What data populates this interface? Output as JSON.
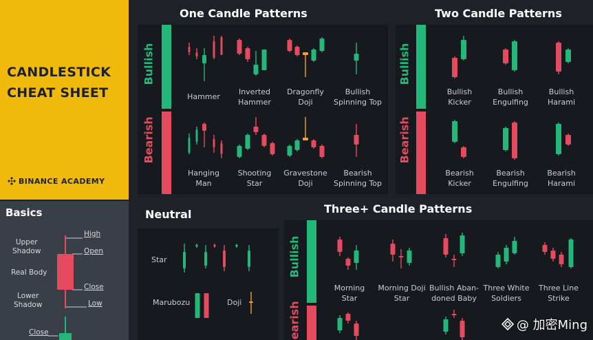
{
  "cheat_sheet": {
    "title_line1": "CANDLESTICK",
    "title_line2": "CHEAT SHEET",
    "brand": "BINANCE ACADEMY"
  },
  "basics": {
    "title": "Basics",
    "high": "High",
    "open": "Open",
    "close": "Close",
    "low": "Low",
    "upper_shadow_1": "Upper",
    "upper_shadow_2": "Shadow",
    "real_body": "Real Body",
    "lower_shadow_1": "Lower",
    "lower_shadow_2": "Shadow",
    "close_bottom": "Close"
  },
  "one_candle": {
    "title": "One Candle Patterns",
    "bullish_label": "Bullish",
    "bearish_label": "Bearish",
    "bullish": [
      {
        "l1": "Hammer",
        "l2": ""
      },
      {
        "l1": "Inverted",
        "l2": "Hammer"
      },
      {
        "l1": "Dragonfly",
        "l2": "Doji"
      },
      {
        "l1": "Bullish",
        "l2": "Spinning Top"
      }
    ],
    "bearish": [
      {
        "l1": "Hanging",
        "l2": "Man"
      },
      {
        "l1": "Shooting",
        "l2": "Star"
      },
      {
        "l1": "Gravestone",
        "l2": "Doji"
      },
      {
        "l1": "Bearish",
        "l2": "Spinning Top"
      }
    ]
  },
  "two_candle": {
    "title": "Two Candle Patterns",
    "bullish_label": "Bullish",
    "bearish_label": "Bearish",
    "bullish": [
      {
        "l1": "Bullish",
        "l2": "Kicker"
      },
      {
        "l1": "Bullish",
        "l2": "Engulfing"
      },
      {
        "l1": "Bullish",
        "l2": "Harami"
      }
    ],
    "bearish": [
      {
        "l1": "Bearish",
        "l2": "Kicker"
      },
      {
        "l1": "Bearish",
        "l2": "Engulfing"
      },
      {
        "l1": "Bearish",
        "l2": "Harami"
      }
    ]
  },
  "neutral": {
    "title": "Neutral",
    "star": "Star",
    "marubozu": "Marubozu",
    "doji": "Doji"
  },
  "three_candle": {
    "title": "Three+ Candle Patterns",
    "bullish_label": "Bullish",
    "bearish_label": "Bearish",
    "bullish": [
      {
        "l1": "Morning",
        "l2": "Star"
      },
      {
        "l1": "Morning Doji",
        "l2": "Star"
      },
      {
        "l1": "Bullish Aban-",
        "l2": "doned Baby"
      },
      {
        "l1": "Three White",
        "l2": "Soldiers"
      },
      {
        "l1": "Three Line",
        "l2": "Strike"
      }
    ]
  },
  "watermark": {
    "text": "@ 加密Ming"
  },
  "colors": {
    "green": "#23b77a",
    "red": "#e54b5e",
    "yellow": "#f0b90b",
    "orange": "#f0a030"
  }
}
